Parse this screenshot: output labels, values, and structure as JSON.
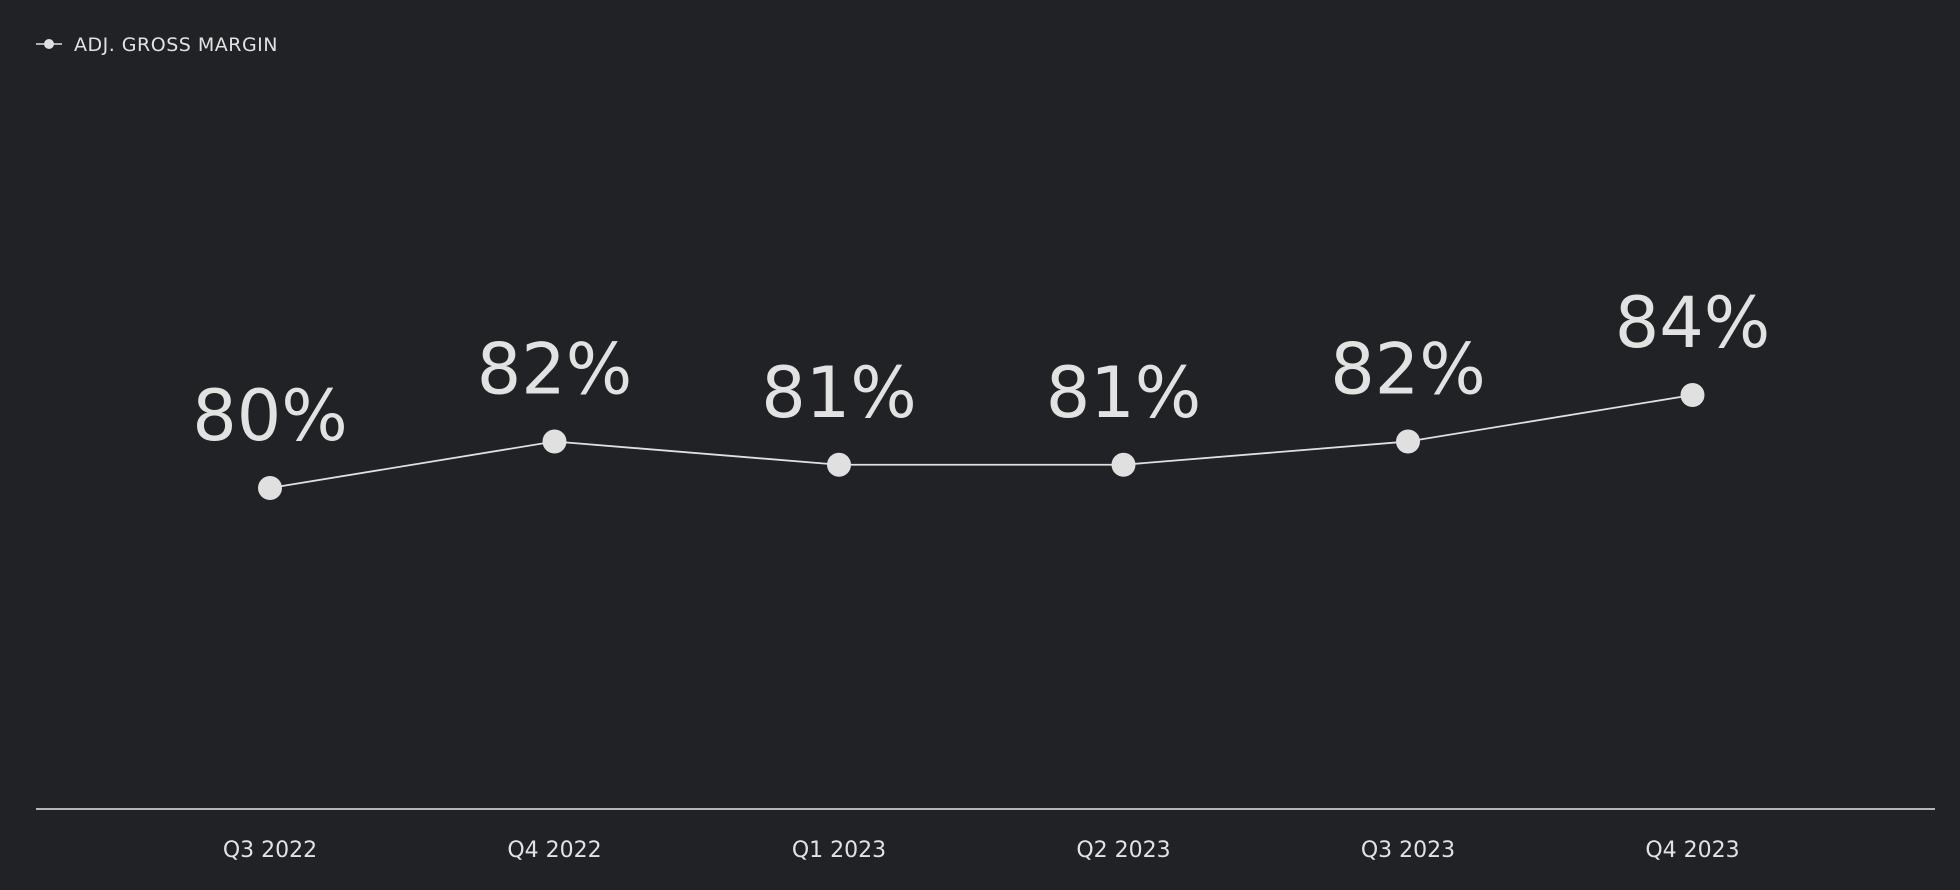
{
  "chart_data": {
    "type": "line",
    "categories": [
      "Q3 2022",
      "Q4 2022",
      "Q1 2023",
      "Q2 2023",
      "Q3 2023",
      "Q4 2023"
    ],
    "series": [
      {
        "name": "ADJ. GROSS MARGIN",
        "color": "#e0e0e0",
        "values": [
          80,
          82,
          81,
          81,
          82,
          84
        ],
        "value_labels": [
          "80%",
          "82%",
          "81%",
          "81%",
          "82%",
          "84%"
        ]
      }
    ],
    "legend": "top-left"
  }
}
